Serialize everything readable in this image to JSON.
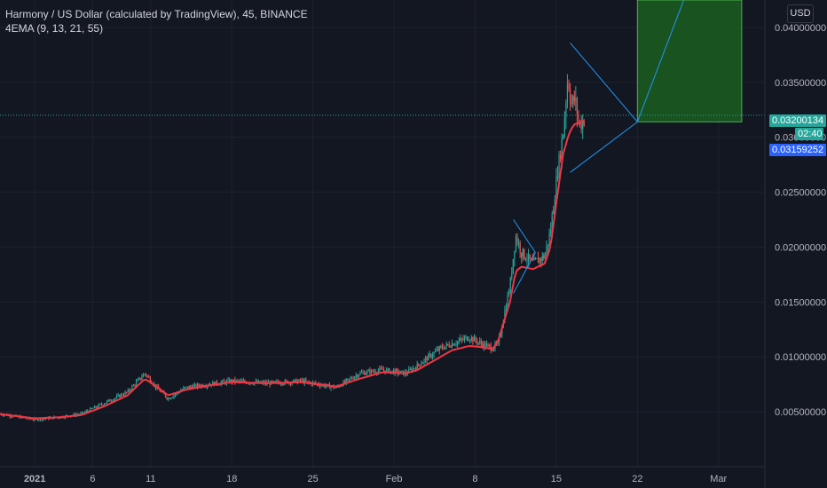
{
  "header": {
    "symbol_line": "Harmony / US Dollar (calculated by TradingView), 45, BINANCE",
    "indicator_line": "4EMA (9, 13, 21, 55)"
  },
  "currency_button": "USD",
  "price_tags": {
    "last_price": "0.03200134",
    "countdown": "02:40",
    "ema_value": "0.03159252",
    "hidden_label": "0.030"
  },
  "colors": {
    "background": "#131722",
    "up": "#26a69a",
    "down": "#ef5350",
    "ema": "#f23645",
    "drawing": "#2196f3",
    "target_zone": "#1b5e20",
    "target_border": "#4caf50"
  },
  "chart_data": {
    "type": "line",
    "title": "Harmony / US Dollar (calculated by TradingView), 45, BINANCE",
    "xlabel": "",
    "ylabel": "",
    "x_ticks": [
      "2021",
      "6",
      "11",
      "18",
      "25",
      "Feb",
      "8",
      "15",
      "22",
      "Mar"
    ],
    "y_ticks": [
      "0.04000000",
      "0.03500000",
      "0.03000000",
      "0.02500000",
      "0.02000000",
      "0.01500000",
      "0.01000000",
      "0.00500000"
    ],
    "ylim": [
      0.0,
      0.0425
    ],
    "xlim_days": [
      -3,
      63
    ],
    "series": [
      {
        "name": "Price",
        "x_days": [
          -3,
          0,
          2,
          4,
          6,
          8,
          9.5,
          10.5,
          11.5,
          13,
          15,
          17,
          20,
          23,
          26,
          28,
          30,
          32,
          33,
          35,
          36,
          37.5,
          38.5,
          39.5,
          40,
          41,
          41.5,
          42,
          43,
          44,
          44.5,
          45,
          45.6,
          46,
          46.3,
          46.6,
          47,
          47.5
        ],
        "values": [
          0.0048,
          0.0043,
          0.0045,
          0.0048,
          0.0058,
          0.0068,
          0.0085,
          0.0072,
          0.0062,
          0.0072,
          0.0075,
          0.0078,
          0.0076,
          0.0078,
          0.0072,
          0.0085,
          0.0088,
          0.0085,
          0.0092,
          0.0108,
          0.0112,
          0.0118,
          0.0112,
          0.0108,
          0.0112,
          0.0165,
          0.021,
          0.0195,
          0.0185,
          0.0192,
          0.0215,
          0.026,
          0.0305,
          0.0355,
          0.033,
          0.0335,
          0.031,
          0.0318
        ]
      },
      {
        "name": "EMA",
        "x_days": [
          -3,
          0,
          2,
          4,
          6,
          8,
          9.5,
          10.5,
          11.5,
          13,
          15,
          17,
          20,
          23,
          26,
          28,
          30,
          32,
          33,
          35,
          36,
          37.5,
          38.5,
          39.5,
          40,
          41,
          41.5,
          42,
          43,
          44,
          44.5,
          45,
          45.6,
          46,
          46.3,
          46.6,
          47,
          47.5
        ],
        "values": [
          0.0048,
          0.0044,
          0.0045,
          0.0047,
          0.0055,
          0.0065,
          0.008,
          0.0073,
          0.0065,
          0.007,
          0.0074,
          0.0077,
          0.0076,
          0.0077,
          0.0073,
          0.008,
          0.0086,
          0.0085,
          0.0088,
          0.01,
          0.0106,
          0.011,
          0.0109,
          0.0107,
          0.0115,
          0.015,
          0.0178,
          0.0182,
          0.018,
          0.0185,
          0.02,
          0.024,
          0.0285,
          0.03,
          0.0308,
          0.0312,
          0.0313,
          0.0316
        ]
      }
    ],
    "target_zone": {
      "x_start_day": 52,
      "x_end_day": 61,
      "y_from": 0.0314,
      "y_to": 0.0425
    }
  }
}
